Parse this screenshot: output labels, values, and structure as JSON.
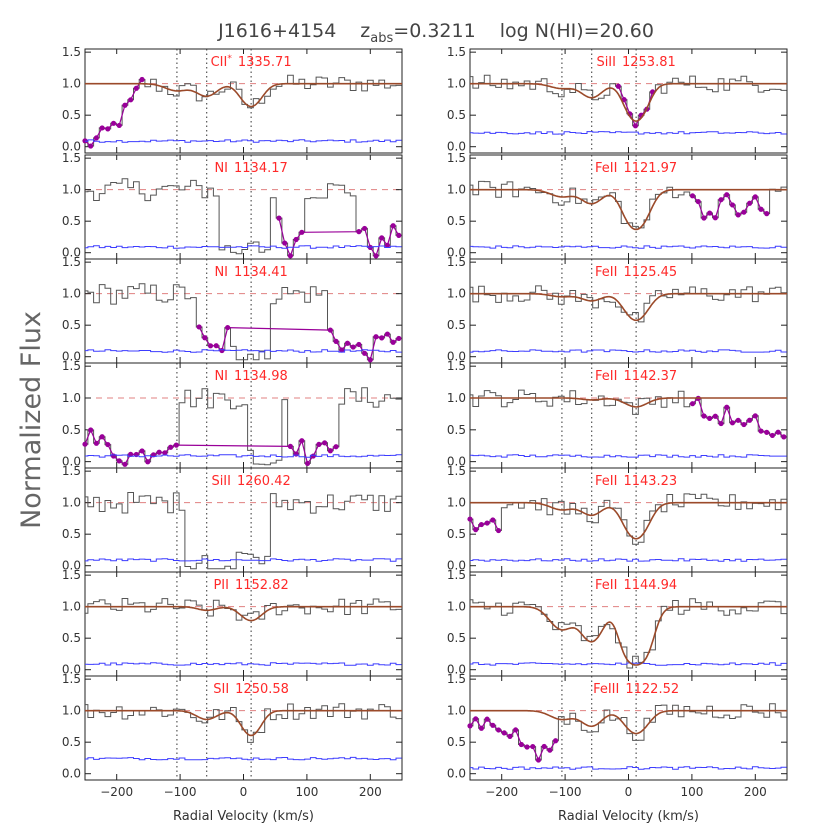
{
  "chart_data": {
    "type": "line",
    "title": "J1616+4154   z_abs=0.3211   log N(HI)=20.60",
    "title_parts": {
      "object": "J1616+4154",
      "z_prefix": "z",
      "z_sub": "abs",
      "z_value": "=0.3211",
      "logn": "log N(HI)=20.60"
    },
    "ylabel": "Normalized Flux",
    "xlabel": "Radial Velocity (km/s)",
    "xlim": [
      -250,
      250
    ],
    "ylim": [
      -0.1,
      1.55
    ],
    "x_ticks": [
      -200,
      -100,
      0,
      100,
      200
    ],
    "x_tick_labels": [
      "−200",
      "−100",
      "0",
      "100",
      "200"
    ],
    "y_ticks": [
      0.0,
      0.5,
      1.0,
      1.5
    ],
    "y_tick_labels": [
      "0.0",
      "0.5",
      "1.0",
      "1.5"
    ],
    "component_velocities_kms": [
      -105,
      -58,
      12
    ],
    "continuum": 1.0,
    "colors": {
      "data": "#555555",
      "error": "#3c3cff",
      "fit": "#9b4a2a",
      "blend": "#990099",
      "label": "#ff2a2a",
      "continuum": "#e08080",
      "components": "#333333"
    },
    "panels": [
      {
        "col": 0,
        "row": 0,
        "ion": "CII",
        "star": true,
        "wavelength": "1335.71",
        "fit": {
          "components": [
            {
              "v": -105,
              "tau": 0.12,
              "b": 25
            },
            {
              "v": -58,
              "tau": 0.22,
              "b": 22
            },
            {
              "v": 12,
              "tau": 0.45,
              "b": 22
            }
          ]
        },
        "blend_ranges": [
          [
            -250,
            -160
          ]
        ],
        "blend_shape": "rise"
      },
      {
        "col": 0,
        "row": 1,
        "ion": "NI",
        "star": false,
        "wavelength": "1134.17",
        "fit": null,
        "sat_ranges": [
          [
            -40,
            40
          ]
        ],
        "blend_ranges": [
          [
            55,
            95
          ],
          [
            175,
            250
          ]
        ],
        "blend_shape": "valley"
      },
      {
        "col": 0,
        "row": 2,
        "ion": "NI",
        "star": false,
        "wavelength": "1134.41",
        "fit": null,
        "sat_ranges": [
          [
            -20,
            45
          ]
        ],
        "blend_ranges": [
          [
            -75,
            -20
          ],
          [
            130,
            250
          ]
        ],
        "blend_shape": "valley"
      },
      {
        "col": 0,
        "row": 3,
        "ion": "NI",
        "star": false,
        "wavelength": "1134.98",
        "fit": null,
        "sat_ranges": [
          [
            5,
            60
          ]
        ],
        "blend_ranges": [
          [
            -250,
            -100
          ],
          [
            70,
            150
          ]
        ],
        "blend_shape": "valley"
      },
      {
        "col": 0,
        "row": 4,
        "ion": "SiII",
        "star": false,
        "wavelength": "1260.42",
        "fit": null,
        "sat_ranges": [
          [
            -95,
            45
          ]
        ],
        "blend_ranges": []
      },
      {
        "col": 0,
        "row": 5,
        "ion": "PII",
        "star": false,
        "wavelength": "1152.82",
        "fit": {
          "components": [
            {
              "v": -58,
              "tau": 0.06,
              "b": 20
            },
            {
              "v": 12,
              "tau": 0.25,
              "b": 22
            }
          ]
        },
        "blend_ranges": []
      },
      {
        "col": 0,
        "row": 6,
        "ion": "SII",
        "star": false,
        "wavelength": "1250.58",
        "fit": {
          "components": [
            {
              "v": -58,
              "tau": 0.15,
              "b": 22
            },
            {
              "v": 12,
              "tau": 0.5,
              "b": 20
            }
          ]
        },
        "blend_ranges": []
      },
      {
        "col": 1,
        "row": 0,
        "ion": "SiII",
        "star": false,
        "wavelength": "1253.81",
        "fit": {
          "components": [
            {
              "v": -105,
              "tau": 0.08,
              "b": 25
            },
            {
              "v": -58,
              "tau": 0.25,
              "b": 22
            },
            {
              "v": 12,
              "tau": 0.9,
              "b": 22
            }
          ]
        },
        "blend_ranges": [
          [
            -20,
            40
          ]
        ],
        "blend_shape": "follow"
      },
      {
        "col": 1,
        "row": 1,
        "ion": "FeII",
        "star": false,
        "wavelength": "1121.97",
        "fit": {
          "components": [
            {
              "v": -105,
              "tau": 0.12,
              "b": 25
            },
            {
              "v": -58,
              "tau": 0.25,
              "b": 22
            },
            {
              "v": 12,
              "tau": 1.0,
              "b": 24
            }
          ]
        },
        "blend_ranges": [
          [
            95,
            220
          ]
        ],
        "blend_shape": "wavy"
      },
      {
        "col": 1,
        "row": 2,
        "ion": "FeII",
        "star": false,
        "wavelength": "1125.45",
        "fit": {
          "components": [
            {
              "v": -105,
              "tau": 0.05,
              "b": 25
            },
            {
              "v": -58,
              "tau": 0.12,
              "b": 22
            },
            {
              "v": 12,
              "tau": 0.55,
              "b": 24
            }
          ]
        },
        "blend_ranges": []
      },
      {
        "col": 1,
        "row": 3,
        "ion": "FeII",
        "star": false,
        "wavelength": "1142.37",
        "fit": {
          "components": [
            {
              "v": -58,
              "tau": 0.03,
              "b": 22
            },
            {
              "v": 12,
              "tau": 0.15,
              "b": 24
            }
          ]
        },
        "blend_ranges": [
          [
            95,
            250
          ]
        ],
        "blend_shape": "decline"
      },
      {
        "col": 1,
        "row": 4,
        "ion": "FeII",
        "star": false,
        "wavelength": "1143.23",
        "fit": {
          "components": [
            {
              "v": -105,
              "tau": 0.12,
              "b": 25
            },
            {
              "v": -58,
              "tau": 0.22,
              "b": 22
            },
            {
              "v": 12,
              "tau": 0.85,
              "b": 24
            }
          ]
        },
        "blend_ranges": [
          [
            -250,
            -200
          ]
        ],
        "blend_shape": "wavy"
      },
      {
        "col": 1,
        "row": 5,
        "ion": "FeII",
        "star": false,
        "wavelength": "1144.94",
        "fit": {
          "components": [
            {
              "v": -105,
              "tau": 0.45,
              "b": 25
            },
            {
              "v": -58,
              "tau": 0.8,
              "b": 22
            },
            {
              "v": 12,
              "tau": 2.6,
              "b": 24
            }
          ]
        },
        "blend_ranges": []
      },
      {
        "col": 1,
        "row": 6,
        "ion": "FeIII",
        "star": false,
        "wavelength": "1122.52",
        "fit": {
          "components": [
            {
              "v": -105,
              "tau": 0.15,
              "b": 25
            },
            {
              "v": -58,
              "tau": 0.28,
              "b": 22
            },
            {
              "v": 12,
              "tau": 0.45,
              "b": 24
            }
          ]
        },
        "blend_ranges": [
          [
            -250,
            -110
          ]
        ],
        "blend_shape": "dip"
      }
    ]
  }
}
